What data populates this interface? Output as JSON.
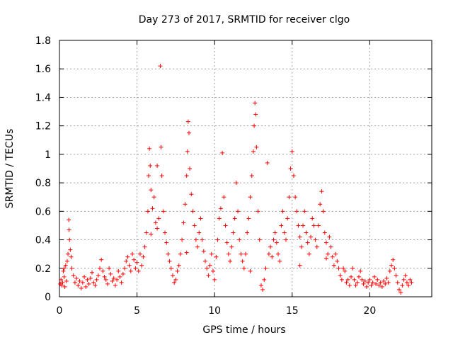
{
  "chart_data": {
    "type": "scatter",
    "title": "Day 273 of 2017, SRMTID for receiver clgo",
    "xlabel": "GPS time / hours",
    "ylabel": "SRMTID / TECUs",
    "xlim": [
      0,
      24
    ],
    "ylim": [
      0,
      1.8
    ],
    "grid": true,
    "marker": "+",
    "marker_color": "#ff0000",
    "xticks": [
      0,
      5,
      10,
      15,
      20
    ],
    "xtick_labels": [
      "0",
      "5",
      "10",
      "15",
      "20"
    ],
    "yticks": [
      0,
      0.2,
      0.4,
      0.6,
      0.8,
      1.0,
      1.2,
      1.4,
      1.6,
      1.8
    ],
    "ytick_labels": [
      "0",
      "0.2",
      "0.4",
      "0.6",
      "0.8",
      "1",
      "1.2",
      "1.4",
      "1.6",
      "1.8"
    ],
    "series": [
      {
        "name": "SRMTID",
        "points": [
          [
            0.05,
            0.09
          ],
          [
            0.1,
            0.12
          ],
          [
            0.15,
            0.08
          ],
          [
            0.2,
            0.1
          ],
          [
            0.25,
            0.18
          ],
          [
            0.3,
            0.14
          ],
          [
            0.35,
            0.07
          ],
          [
            0.4,
            0.22
          ],
          [
            0.45,
            0.11
          ],
          [
            0.5,
            0.25
          ],
          [
            0.55,
            0.3
          ],
          [
            0.6,
            0.54
          ],
          [
            0.62,
            0.47
          ],
          [
            0.65,
            0.4
          ],
          [
            0.7,
            0.33
          ],
          [
            0.75,
            0.28
          ],
          [
            0.8,
            0.2
          ],
          [
            0.9,
            0.15
          ],
          [
            1.0,
            0.1
          ],
          [
            1.1,
            0.13
          ],
          [
            1.2,
            0.08
          ],
          [
            1.3,
            0.11
          ],
          [
            1.4,
            0.06
          ],
          [
            1.5,
            0.1
          ],
          [
            1.6,
            0.14
          ],
          [
            1.7,
            0.07
          ],
          [
            1.8,
            0.12
          ],
          [
            1.9,
            0.09
          ],
          [
            2.0,
            0.13
          ],
          [
            2.1,
            0.17
          ],
          [
            2.2,
            0.1
          ],
          [
            2.3,
            0.08
          ],
          [
            2.4,
            0.12
          ],
          [
            2.5,
            0.15
          ],
          [
            2.6,
            0.2
          ],
          [
            2.7,
            0.26
          ],
          [
            2.8,
            0.18
          ],
          [
            2.9,
            0.14
          ],
          [
            3.0,
            0.12
          ],
          [
            3.1,
            0.09
          ],
          [
            3.2,
            0.2
          ],
          [
            3.3,
            0.16
          ],
          [
            3.4,
            0.11
          ],
          [
            3.5,
            0.13
          ],
          [
            3.6,
            0.08
          ],
          [
            3.7,
            0.12
          ],
          [
            3.8,
            0.18
          ],
          [
            3.9,
            0.14
          ],
          [
            4.0,
            0.1
          ],
          [
            4.1,
            0.16
          ],
          [
            4.2,
            0.2
          ],
          [
            4.3,
            0.25
          ],
          [
            4.4,
            0.28
          ],
          [
            4.5,
            0.22
          ],
          [
            4.6,
            0.18
          ],
          [
            4.7,
            0.3
          ],
          [
            4.8,
            0.26
          ],
          [
            4.9,
            0.2
          ],
          [
            5.0,
            0.24
          ],
          [
            5.1,
            0.18
          ],
          [
            5.2,
            0.3
          ],
          [
            5.3,
            0.22
          ],
          [
            5.4,
            0.28
          ],
          [
            5.5,
            0.35
          ],
          [
            5.6,
            0.45
          ],
          [
            5.7,
            0.6
          ],
          [
            5.75,
            0.85
          ],
          [
            5.8,
            1.04
          ],
          [
            5.85,
            0.92
          ],
          [
            5.9,
            0.75
          ],
          [
            6.0,
            0.62
          ],
          [
            6.1,
            0.7
          ],
          [
            6.2,
            0.52
          ],
          [
            6.3,
            0.48
          ],
          [
            6.4,
            0.55
          ],
          [
            6.5,
            1.62
          ],
          [
            6.55,
            1.05
          ],
          [
            6.6,
            0.85
          ],
          [
            6.7,
            0.6
          ],
          [
            6.8,
            0.45
          ],
          [
            6.9,
            0.38
          ],
          [
            7.0,
            0.3
          ],
          [
            7.1,
            0.25
          ],
          [
            7.2,
            0.2
          ],
          [
            7.3,
            0.15
          ],
          [
            7.4,
            0.1
          ],
          [
            7.5,
            0.12
          ],
          [
            7.6,
            0.18
          ],
          [
            7.7,
            0.22
          ],
          [
            7.8,
            0.3
          ],
          [
            7.9,
            0.4
          ],
          [
            8.0,
            0.52
          ],
          [
            8.1,
            0.65
          ],
          [
            8.2,
            0.85
          ],
          [
            8.25,
            1.02
          ],
          [
            8.3,
            1.23
          ],
          [
            8.35,
            1.15
          ],
          [
            8.4,
            0.9
          ],
          [
            8.5,
            0.72
          ],
          [
            8.6,
            0.6
          ],
          [
            8.7,
            0.5
          ],
          [
            8.8,
            0.4
          ],
          [
            8.9,
            0.35
          ],
          [
            9.0,
            0.45
          ],
          [
            9.1,
            0.55
          ],
          [
            9.2,
            0.4
          ],
          [
            9.3,
            0.32
          ],
          [
            9.4,
            0.25
          ],
          [
            9.5,
            0.2
          ],
          [
            9.6,
            0.15
          ],
          [
            9.7,
            0.22
          ],
          [
            9.8,
            0.3
          ],
          [
            9.9,
            0.18
          ],
          [
            10.0,
            0.12
          ],
          [
            10.1,
            0.28
          ],
          [
            10.2,
            0.4
          ],
          [
            10.3,
            0.55
          ],
          [
            10.4,
            0.62
          ],
          [
            10.5,
            1.01
          ],
          [
            10.6,
            0.7
          ],
          [
            10.7,
            0.5
          ],
          [
            10.8,
            0.38
          ],
          [
            10.9,
            0.3
          ],
          [
            11.0,
            0.25
          ],
          [
            11.1,
            0.35
          ],
          [
            11.2,
            0.45
          ],
          [
            11.3,
            0.55
          ],
          [
            11.4,
            0.8
          ],
          [
            11.5,
            0.6
          ],
          [
            11.6,
            0.4
          ],
          [
            11.7,
            0.3
          ],
          [
            11.8,
            0.25
          ],
          [
            11.9,
            0.2
          ],
          [
            12.0,
            0.3
          ],
          [
            12.1,
            0.45
          ],
          [
            12.2,
            0.55
          ],
          [
            12.3,
            0.7
          ],
          [
            12.4,
            0.85
          ],
          [
            12.5,
            1.02
          ],
          [
            12.55,
            1.2
          ],
          [
            12.6,
            1.36
          ],
          [
            12.65,
            1.28
          ],
          [
            12.7,
            1.05
          ],
          [
            12.8,
            0.6
          ],
          [
            12.9,
            0.4
          ],
          [
            13.0,
            0.08
          ],
          [
            13.1,
            0.05
          ],
          [
            13.2,
            0.12
          ],
          [
            13.3,
            0.2
          ],
          [
            13.4,
            0.94
          ],
          [
            13.5,
            0.3
          ],
          [
            13.6,
            0.35
          ],
          [
            13.7,
            0.28
          ],
          [
            13.8,
            0.4
          ],
          [
            13.9,
            0.45
          ],
          [
            14.0,
            0.38
          ],
          [
            14.1,
            0.3
          ],
          [
            14.2,
            0.25
          ],
          [
            14.3,
            0.5
          ],
          [
            14.4,
            0.6
          ],
          [
            14.5,
            0.45
          ],
          [
            14.6,
            0.4
          ],
          [
            14.7,
            0.55
          ],
          [
            14.8,
            0.7
          ],
          [
            14.9,
            0.9
          ],
          [
            15.0,
            1.02
          ],
          [
            15.1,
            0.85
          ],
          [
            15.2,
            0.7
          ],
          [
            15.3,
            0.6
          ],
          [
            15.4,
            0.5
          ],
          [
            15.5,
            0.42
          ],
          [
            15.6,
            0.35
          ],
          [
            15.7,
            0.5
          ],
          [
            15.8,
            0.6
          ],
          [
            15.9,
            0.45
          ],
          [
            16.0,
            0.38
          ],
          [
            16.1,
            0.3
          ],
          [
            16.2,
            0.42
          ],
          [
            16.3,
            0.55
          ],
          [
            16.4,
            0.5
          ],
          [
            16.5,
            0.4
          ],
          [
            16.6,
            0.35
          ],
          [
            16.7,
            0.5
          ],
          [
            16.8,
            0.65
          ],
          [
            16.9,
            0.74
          ],
          [
            17.0,
            0.6
          ],
          [
            17.1,
            0.45
          ],
          [
            17.2,
            0.38
          ],
          [
            17.3,
            0.3
          ],
          [
            17.4,
            0.42
          ],
          [
            17.5,
            0.35
          ],
          [
            17.6,
            0.28
          ],
          [
            17.7,
            0.22
          ],
          [
            17.8,
            0.3
          ],
          [
            17.9,
            0.25
          ],
          [
            18.0,
            0.2
          ],
          [
            18.1,
            0.15
          ],
          [
            18.2,
            0.12
          ],
          [
            18.3,
            0.2
          ],
          [
            18.4,
            0.18
          ],
          [
            18.5,
            0.1
          ],
          [
            18.6,
            0.12
          ],
          [
            18.7,
            0.08
          ],
          [
            18.8,
            0.14
          ],
          [
            18.9,
            0.2
          ],
          [
            19.0,
            0.12
          ],
          [
            19.1,
            0.08
          ],
          [
            19.2,
            0.1
          ],
          [
            19.3,
            0.14
          ],
          [
            19.4,
            0.18
          ],
          [
            19.5,
            0.12
          ],
          [
            19.6,
            0.09
          ],
          [
            19.7,
            0.11
          ],
          [
            19.8,
            0.07
          ],
          [
            19.9,
            0.1
          ],
          [
            20.0,
            0.12
          ],
          [
            20.1,
            0.08
          ],
          [
            20.2,
            0.1
          ],
          [
            20.3,
            0.14
          ],
          [
            20.4,
            0.09
          ],
          [
            20.5,
            0.12
          ],
          [
            20.6,
            0.08
          ],
          [
            20.7,
            0.1
          ],
          [
            20.8,
            0.07
          ],
          [
            20.9,
            0.11
          ],
          [
            21.0,
            0.09
          ],
          [
            21.1,
            0.13
          ],
          [
            21.2,
            0.1
          ],
          [
            21.3,
            0.18
          ],
          [
            21.4,
            0.22
          ],
          [
            21.5,
            0.26
          ],
          [
            21.6,
            0.2
          ],
          [
            21.7,
            0.15
          ],
          [
            21.8,
            0.1
          ],
          [
            21.9,
            0.05
          ],
          [
            22.0,
            0.03
          ],
          [
            22.1,
            0.08
          ],
          [
            22.2,
            0.12
          ],
          [
            22.3,
            0.15
          ],
          [
            22.4,
            0.1
          ],
          [
            22.5,
            0.08
          ],
          [
            22.6,
            0.12
          ],
          [
            22.7,
            0.1
          ],
          [
            0.3,
            0.2
          ],
          [
            5.9,
            0.44
          ],
          [
            8.2,
            0.31
          ],
          [
            12.3,
            0.18
          ],
          [
            15.5,
            0.22
          ],
          [
            17.2,
            0.27
          ],
          [
            6.3,
            0.92
          ]
        ]
      }
    ]
  }
}
